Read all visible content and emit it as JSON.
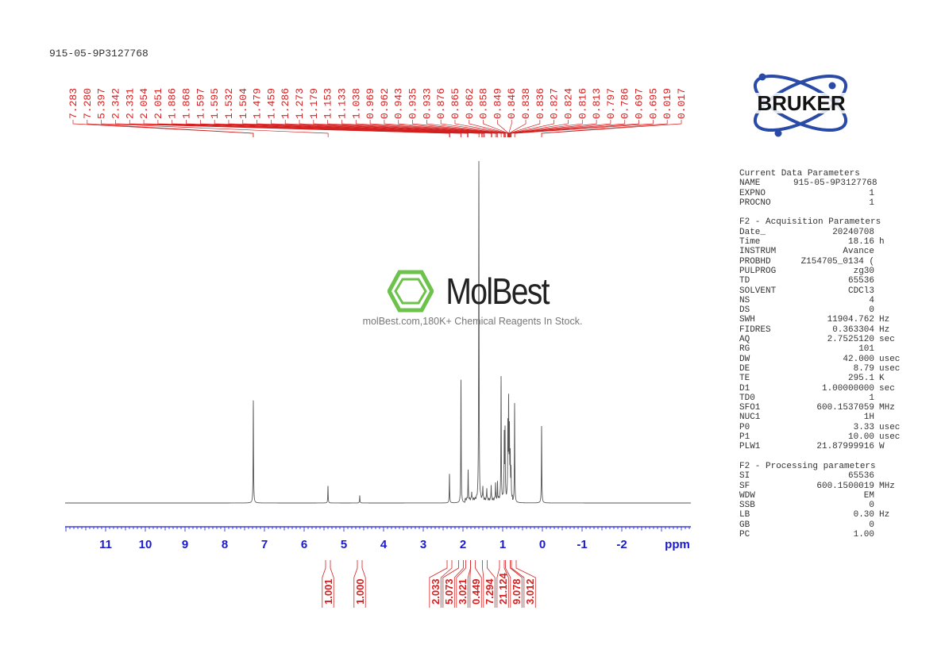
{
  "header": {
    "sample_name": "915-05-9P3127768"
  },
  "logo": {
    "brand": "BRUKER",
    "color": "#2a4aa8"
  },
  "watermark": {
    "brand": "MolBest",
    "tagline": "molBest.com,180K+ Chemical Reagents In Stock.",
    "color": "#6cc24a"
  },
  "parameters": {
    "sections": [
      {
        "title": "Current Data Parameters",
        "rows": [
          [
            "NAME",
            "915-05-9P3127768",
            ""
          ],
          [
            "EXPNO",
            "1",
            ""
          ],
          [
            "PROCNO",
            "1",
            ""
          ]
        ]
      },
      {
        "title": "F2 - Acquisition Parameters",
        "rows": [
          [
            "Date_",
            "20240708",
            ""
          ],
          [
            "Time",
            "18.16",
            "h"
          ],
          [
            "INSTRUM",
            "Avance",
            ""
          ],
          [
            "PROBHD",
            "Z154705_0134 (",
            ""
          ],
          [
            "PULPROG",
            "zg30",
            ""
          ],
          [
            "TD",
            "65536",
            ""
          ],
          [
            "SOLVENT",
            "CDCl3",
            ""
          ],
          [
            "NS",
            "4",
            ""
          ],
          [
            "DS",
            "0",
            ""
          ],
          [
            "SWH",
            "11904.762",
            "Hz"
          ],
          [
            "FIDRES",
            "0.363304",
            "Hz"
          ],
          [
            "AQ",
            "2.7525120",
            "sec"
          ],
          [
            "RG",
            "101",
            ""
          ],
          [
            "DW",
            "42.000",
            "usec"
          ],
          [
            "DE",
            "8.79",
            "usec"
          ],
          [
            "TE",
            "295.1",
            "K"
          ],
          [
            "D1",
            "1.00000000",
            "sec"
          ],
          [
            "TD0",
            "1",
            ""
          ],
          [
            "SFO1",
            "600.1537059",
            "MHz"
          ],
          [
            "NUC1",
            "1H",
            ""
          ],
          [
            "P0",
            "3.33",
            "usec"
          ],
          [
            "P1",
            "10.00",
            "usec"
          ],
          [
            "PLW1",
            "21.87999916",
            "W"
          ]
        ]
      },
      {
        "title": "F2 - Processing parameters",
        "rows": [
          [
            "SI",
            "65536",
            ""
          ],
          [
            "SF",
            "600.1500019",
            "MHz"
          ],
          [
            "WDW",
            "EM",
            ""
          ],
          [
            "SSB",
            "0",
            ""
          ],
          [
            "LB",
            "0.30",
            "Hz"
          ],
          [
            "GB",
            "0",
            ""
          ],
          [
            "PC",
            "1.00",
            ""
          ]
        ]
      }
    ]
  },
  "chart_data": {
    "type": "line",
    "xlabel": "ppm",
    "xlim": [
      12.02,
      -3.74
    ],
    "x_reversed": true,
    "xticks": [
      11,
      10,
      9,
      8,
      7,
      6,
      5,
      4,
      3,
      2,
      1,
      0,
      -1,
      -2
    ],
    "colors": {
      "spectrum": "#555555",
      "peak_labels": "#d42020",
      "integrals": "#d42020",
      "axis": "#1a1acc"
    },
    "peak_labels": [
      "7.283",
      "7.280",
      "5.397",
      "2.342",
      "2.331",
      "2.054",
      "2.051",
      "1.886",
      "1.868",
      "1.597",
      "1.595",
      "1.532",
      "1.504",
      "1.479",
      "1.459",
      "1.286",
      "1.273",
      "1.179",
      "1.153",
      "1.133",
      "1.038",
      "0.969",
      "0.962",
      "0.943",
      "0.935",
      "0.933",
      "0.876",
      "0.865",
      "0.862",
      "0.858",
      "0.849",
      "0.846",
      "0.838",
      "0.836",
      "0.827",
      "0.824",
      "0.816",
      "0.813",
      "0.797",
      "0.786",
      "0.697",
      "0.695",
      "0.019",
      "0.017"
    ],
    "peaks": [
      {
        "ppm": 7.28,
        "intensity": 30
      },
      {
        "ppm": 5.4,
        "intensity": 5
      },
      {
        "ppm": 4.6,
        "intensity": 2.2
      },
      {
        "ppm": 2.34,
        "intensity": 8.5
      },
      {
        "ppm": 2.05,
        "intensity": 36
      },
      {
        "ppm": 1.87,
        "intensity": 8.5
      },
      {
        "ppm": 1.78,
        "intensity": 2.5
      },
      {
        "ppm": 1.6,
        "intensity": 100
      },
      {
        "ppm": 1.5,
        "intensity": 4
      },
      {
        "ppm": 1.4,
        "intensity": 3.5
      },
      {
        "ppm": 1.29,
        "intensity": 4.5
      },
      {
        "ppm": 1.18,
        "intensity": 5
      },
      {
        "ppm": 1.13,
        "intensity": 5
      },
      {
        "ppm": 1.04,
        "intensity": 36
      },
      {
        "ppm": 0.96,
        "intensity": 18
      },
      {
        "ppm": 0.94,
        "intensity": 20
      },
      {
        "ppm": 0.87,
        "intensity": 21
      },
      {
        "ppm": 0.85,
        "intensity": 27
      },
      {
        "ppm": 0.83,
        "intensity": 19
      },
      {
        "ppm": 0.81,
        "intensity": 12
      },
      {
        "ppm": 0.79,
        "intensity": 8
      },
      {
        "ppm": 0.7,
        "intensity": 29
      },
      {
        "ppm": 0.02,
        "intensity": 22.5
      }
    ],
    "integrals": [
      {
        "ppm": 5.4,
        "value": "1.001"
      },
      {
        "ppm": 4.6,
        "value": "1.000"
      },
      {
        "ppm": 2.34,
        "value": "2.033"
      },
      {
        "ppm": 2.05,
        "value": "5.073"
      },
      {
        "ppm": 1.87,
        "value": "3.021"
      },
      {
        "ppm": 1.75,
        "value": "0.449"
      },
      {
        "ppm": 1.45,
        "value": "7.294"
      },
      {
        "ppm": 1.02,
        "value": "21.124"
      },
      {
        "ppm": 0.87,
        "value": "9.078"
      },
      {
        "ppm": 0.72,
        "value": "3.012"
      }
    ]
  }
}
